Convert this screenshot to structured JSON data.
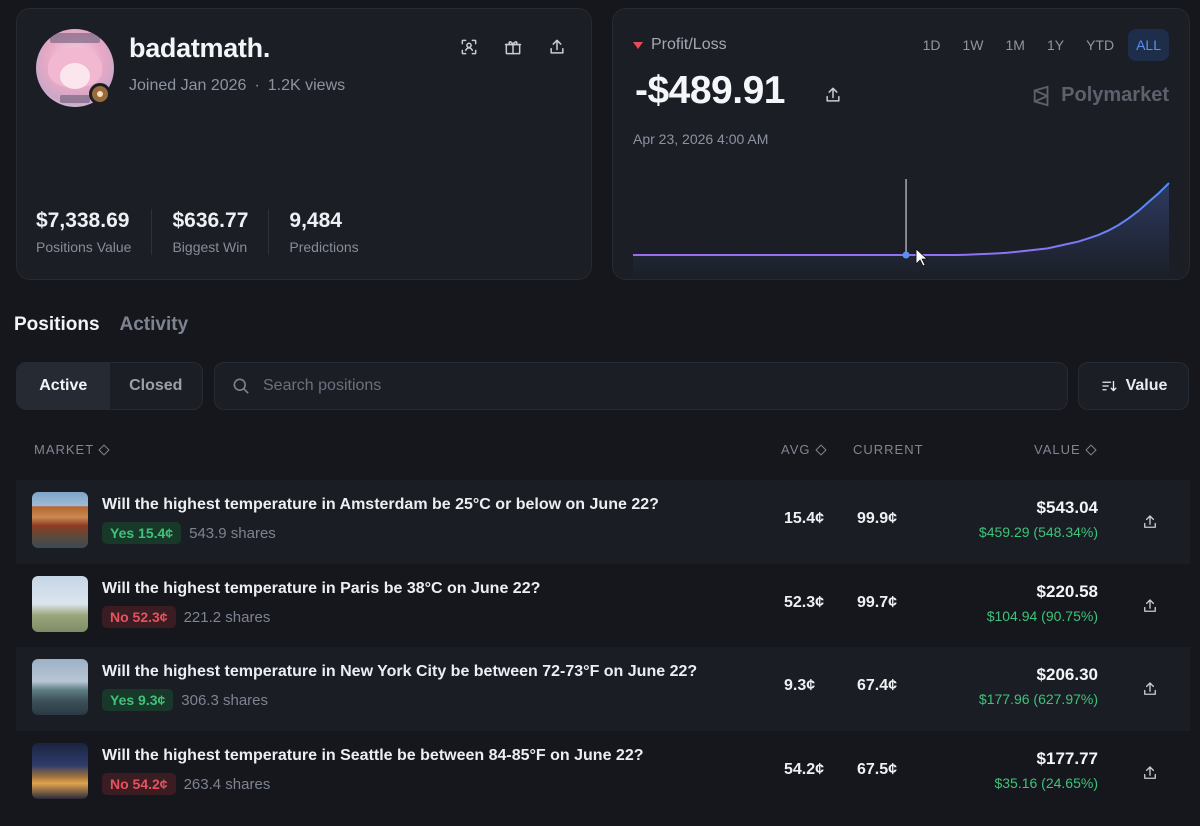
{
  "profile": {
    "username": "badatmath.",
    "joined": "Joined Jan 2026",
    "views": "1.2K views",
    "separator": "·",
    "stats": [
      {
        "value": "$7,338.69",
        "label": "Positions Value"
      },
      {
        "value": "$636.77",
        "label": "Biggest Win"
      },
      {
        "value": "9,484",
        "label": "Predictions"
      }
    ],
    "icons": [
      "qr-scan-icon",
      "gift-icon",
      "share-icon"
    ]
  },
  "pnl": {
    "label": "Profit/Loss",
    "value": "-$489.91",
    "date": "Apr 23, 2026 4:00 AM",
    "brand": "Polymarket",
    "ranges": [
      "1D",
      "1W",
      "1M",
      "1Y",
      "YTD",
      "ALL"
    ],
    "active_range": "ALL",
    "colors": {
      "down": "#e54b5a",
      "line_start": "#9b6cf0",
      "line_end": "#4f8ef7"
    },
    "chart_data": {
      "type": "line",
      "series": [
        {
          "values": [
            0,
            0,
            0,
            0,
            0,
            0,
            0,
            0,
            0,
            0,
            0,
            0,
            0,
            0,
            0,
            0,
            0,
            0,
            0,
            0,
            0,
            0,
            0,
            0,
            0,
            0,
            0,
            0,
            0,
            0,
            0,
            0,
            0,
            0.3,
            0.6,
            1,
            1.4,
            2,
            3,
            4,
            5,
            6,
            8,
            10,
            12,
            15,
            18,
            22,
            27,
            33,
            40,
            48,
            56,
            65
          ]
        }
      ],
      "cursor_index": 27,
      "grid": false
    }
  },
  "tabs": {
    "items": [
      "Positions",
      "Activity"
    ],
    "active": "Positions"
  },
  "filters": {
    "segments": [
      "Active",
      "Closed"
    ],
    "active_segment": "Active",
    "search_placeholder": "Search positions",
    "sort_label": "Value"
  },
  "table": {
    "headers": {
      "market": "MARKET",
      "avg": "AVG",
      "current": "CURRENT",
      "value": "VALUE"
    },
    "rows": [
      {
        "title": "Will the highest temperature in Amsterdam be 25°C or below on June 22?",
        "outcome": "Yes 15.4¢",
        "side": "yes",
        "shares": "543.9 shares",
        "avg": "15.4¢",
        "current": "99.9¢",
        "value": "$543.04",
        "change": "$459.29 (548.34%)",
        "thumb": "amsterdam-canal-houses"
      },
      {
        "title": "Will the highest temperature in Paris be 38°C on June 22?",
        "outcome": "No 52.3¢",
        "side": "no",
        "shares": "221.2 shares",
        "avg": "52.3¢",
        "current": "99.7¢",
        "value": "$220.58",
        "change": "$104.94 (90.75%)",
        "thumb": "paris-eiffel-tower"
      },
      {
        "title": "Will the highest temperature in New York City be between 72-73°F on June 22?",
        "outcome": "Yes 9.3¢",
        "side": "yes",
        "shares": "306.3 shares",
        "avg": "9.3¢",
        "current": "67.4¢",
        "value": "$206.30",
        "change": "$177.96 (627.97%)",
        "thumb": "nyc-statue-of-liberty"
      },
      {
        "title": "Will the highest temperature in Seattle be between 84-85°F on June 22?",
        "outcome": "No 54.2¢",
        "side": "no",
        "shares": "263.4 shares",
        "avg": "54.2¢",
        "current": "67.5¢",
        "value": "$177.77",
        "change": "$35.16 (24.65%)",
        "thumb": "seattle-space-needle"
      }
    ]
  }
}
